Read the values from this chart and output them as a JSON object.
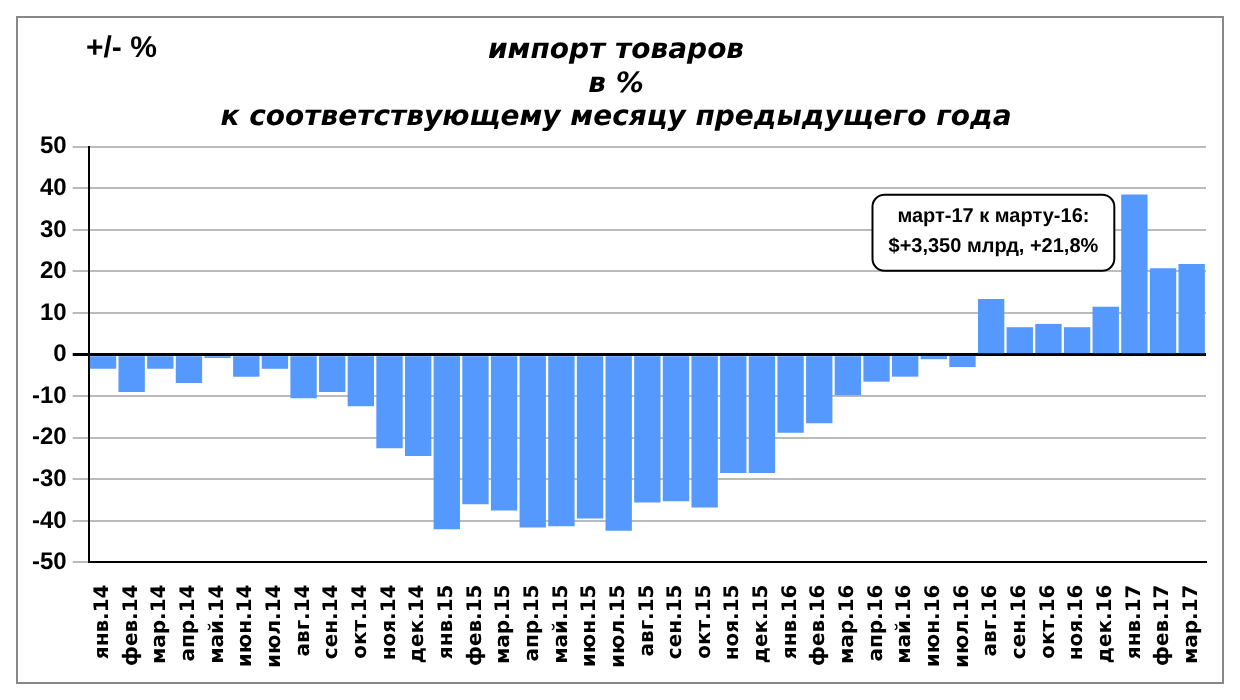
{
  "chart_data": {
    "type": "bar",
    "title": "импорт товаров\nв %\nк соответствующему месяцу предыдущего года",
    "ylabel": "+/- %",
    "categories": [
      "янв.14",
      "фев.14",
      "мар.14",
      "апр.14",
      "май.14",
      "июн.14",
      "июл.14",
      "авг.14",
      "сен.14",
      "окт.14",
      "ноя.14",
      "дек.14",
      "янв.15",
      "фев.15",
      "мар.15",
      "апр.15",
      "май.15",
      "июн.15",
      "июл.15",
      "авг.15",
      "сен.15",
      "окт.15",
      "ноя.15",
      "дек.15",
      "янв.16",
      "фев.16",
      "мар.16",
      "апр.16",
      "май.16",
      "июн.16",
      "июл.16",
      "авг.16",
      "сен.16",
      "окт.16",
      "ноя.16",
      "дек.16",
      "янв.17",
      "фев.17",
      "мар.17"
    ],
    "values": [
      -3.4,
      -9.0,
      -3.4,
      -6.8,
      -0.8,
      -5.3,
      -3.4,
      -10.5,
      -9.0,
      -12.4,
      -22.5,
      -24.4,
      -42.0,
      -36.0,
      -37.5,
      -41.6,
      -41.3,
      -39.4,
      -42.4,
      -35.6,
      -35.3,
      -36.8,
      -28.5,
      -28.5,
      -18.8,
      -16.5,
      -9.8,
      -6.5,
      -5.3,
      -1.1,
      -3.0,
      13.4,
      6.6,
      7.4,
      6.6,
      11.5,
      38.5,
      20.8,
      21.8
    ],
    "color": "#5599ff",
    "ylim": [
      -50,
      50
    ],
    "yticks": [
      -50,
      -40,
      -30,
      -20,
      -10,
      0,
      10,
      20,
      30,
      40,
      50
    ],
    "grid": "y",
    "legend": false,
    "annotations": [
      "март-17 к марту-16:\n$+3,350 млрд, +21,8%"
    ]
  }
}
